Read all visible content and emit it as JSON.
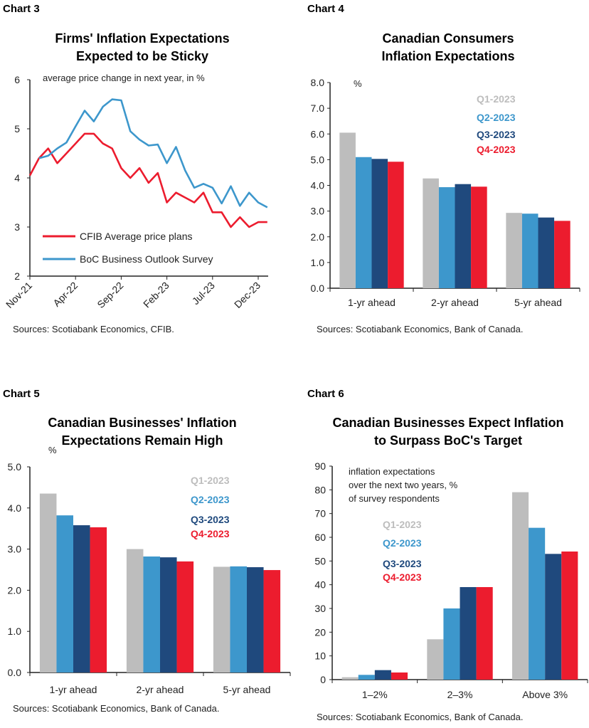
{
  "colors": {
    "q1": "#bdbdbd",
    "q2": "#3d97cc",
    "q3": "#1f497d",
    "q4": "#ec1c2e",
    "cfib": "#ec1c2e",
    "boc": "#3d97cc"
  },
  "panels": [
    {
      "label": "Chart 3",
      "title_lines": [
        "Firms' Inflation Expectations",
        "Expected to be Sticky"
      ]
    },
    {
      "label": "Chart 4",
      "title_lines": [
        "Canadian Consumers",
        "Inflation Expectations"
      ]
    },
    {
      "label": "Chart 5",
      "title_lines": [
        "Canadian Businesses' Inflation",
        "Expectations Remain High"
      ]
    },
    {
      "label": "Chart 6",
      "title_lines": [
        "Canadian Businesses Expect Inflation",
        "to Surpass BoC's Target"
      ]
    }
  ],
  "chart_data": [
    {
      "type": "line",
      "title": "Firms' Inflation Expectations Expected to be Sticky",
      "subtitle": "average price change in next year, in %",
      "x": [
        "Nov-21",
        "Dec-21",
        "Jan-22",
        "Feb-22",
        "Mar-22",
        "Apr-22",
        "May-22",
        "Jun-22",
        "Jul-22",
        "Aug-22",
        "Sep-22",
        "Oct-22",
        "Nov-22",
        "Dec-22",
        "Jan-23",
        "Feb-23",
        "Mar-23",
        "Apr-23",
        "May-23",
        "Jun-23",
        "Jul-23",
        "Aug-23",
        "Sep-23",
        "Oct-23",
        "Nov-23",
        "Dec-23",
        "Jan-24"
      ],
      "xticks": [
        "Nov-21",
        "Apr-22",
        "Sep-22",
        "Feb-23",
        "Jul-23",
        "Dec-23"
      ],
      "ylim": [
        2,
        6
      ],
      "yticks": [
        "2",
        "3",
        "4",
        "5",
        "6"
      ],
      "legend_position": "bottom-left",
      "series": [
        {
          "name": "CFIB Average price plans",
          "color": "#ec1c2e",
          "values": [
            4.05,
            4.4,
            4.6,
            4.3,
            4.5,
            4.7,
            4.9,
            4.9,
            4.7,
            4.6,
            4.2,
            4.0,
            4.2,
            3.9,
            4.1,
            3.5,
            3.7,
            3.6,
            3.5,
            3.7,
            3.3,
            3.3,
            3.0,
            3.2,
            3.0,
            3.1,
            3.1
          ]
        },
        {
          "name": "BoC Business Outlook Survey",
          "color": "#3d97cc",
          "values": [
            null,
            4.4,
            4.45,
            4.6,
            4.72,
            5.05,
            5.37,
            5.15,
            5.45,
            5.6,
            5.58,
            4.95,
            4.78,
            4.66,
            4.68,
            4.3,
            4.63,
            4.15,
            3.8,
            3.88,
            3.8,
            3.48,
            3.83,
            3.43,
            3.7,
            3.5,
            3.4
          ]
        }
      ],
      "source": "Sources: Scotiabank Economics, CFIB."
    },
    {
      "type": "bar",
      "title": "Canadian Consumers Inflation Expectations",
      "unit": "%",
      "categories": [
        "1-yr ahead",
        "2-yr ahead",
        "5-yr ahead"
      ],
      "ylim": [
        0,
        8
      ],
      "yticks": [
        "0.0",
        "1.0",
        "2.0",
        "3.0",
        "4.0",
        "5.0",
        "6.0",
        "7.0",
        "8.0"
      ],
      "legend_position": "top-right",
      "series": [
        {
          "name": "Q1-2023",
          "color": "#bdbdbd",
          "values": [
            6.05,
            4.27,
            2.93
          ]
        },
        {
          "name": "Q2-2023",
          "color": "#3d97cc",
          "values": [
            5.1,
            3.93,
            2.9
          ]
        },
        {
          "name": "Q3-2023",
          "color": "#1f497d",
          "values": [
            5.03,
            4.05,
            2.75
          ]
        },
        {
          "name": "Q4-2023",
          "color": "#ec1c2e",
          "values": [
            4.92,
            3.95,
            2.62
          ]
        }
      ],
      "source": "Sources: Scotiabank Economics, Bank of Canada."
    },
    {
      "type": "bar",
      "title": "Canadian Businesses' Inflation Expectations Remain High",
      "unit": "%",
      "categories": [
        "1-yr ahead",
        "2-yr ahead",
        "5-yr ahead"
      ],
      "ylim": [
        0,
        5
      ],
      "yticks": [
        "0.0",
        "1.0",
        "2.0",
        "3.0",
        "4.0",
        "5.0"
      ],
      "legend_position": "top-right",
      "series": [
        {
          "name": "Q1-2023",
          "color": "#bdbdbd",
          "values": [
            4.35,
            3.0,
            2.57
          ]
        },
        {
          "name": "Q2-2023",
          "color": "#3d97cc",
          "values": [
            3.82,
            2.82,
            2.58
          ]
        },
        {
          "name": "Q3-2023",
          "color": "#1f497d",
          "values": [
            3.58,
            2.8,
            2.56
          ]
        },
        {
          "name": "Q4-2023",
          "color": "#ec1c2e",
          "values": [
            3.53,
            2.7,
            2.49
          ]
        }
      ],
      "source": "Sources: Scotiabank Economics, Bank of Canada."
    },
    {
      "type": "bar",
      "title": "Canadian Businesses Expect Inflation to Surpass BoC's Target",
      "subtitle_lines": [
        "inflation expectations",
        "over the next two years, %",
        "of survey respondents"
      ],
      "categories": [
        "1–2%",
        "2–3%",
        "Above 3%"
      ],
      "ylim": [
        0,
        90
      ],
      "yticks": [
        "0",
        "10",
        "20",
        "30",
        "40",
        "50",
        "60",
        "70",
        "80",
        "90"
      ],
      "legend_position": "top-left",
      "series": [
        {
          "name": "Q1-2023",
          "color": "#bdbdbd",
          "values": [
            1,
            17,
            79
          ]
        },
        {
          "name": "Q2-2023",
          "color": "#3d97cc",
          "values": [
            2,
            30,
            64
          ]
        },
        {
          "name": "Q3-2023",
          "color": "#1f497d",
          "values": [
            4,
            39,
            53
          ]
        },
        {
          "name": "Q4-2023",
          "color": "#ec1c2e",
          "values": [
            3,
            39,
            54
          ]
        }
      ],
      "source": "Sources: Scotiabank Economics, Bank of Canada."
    }
  ]
}
